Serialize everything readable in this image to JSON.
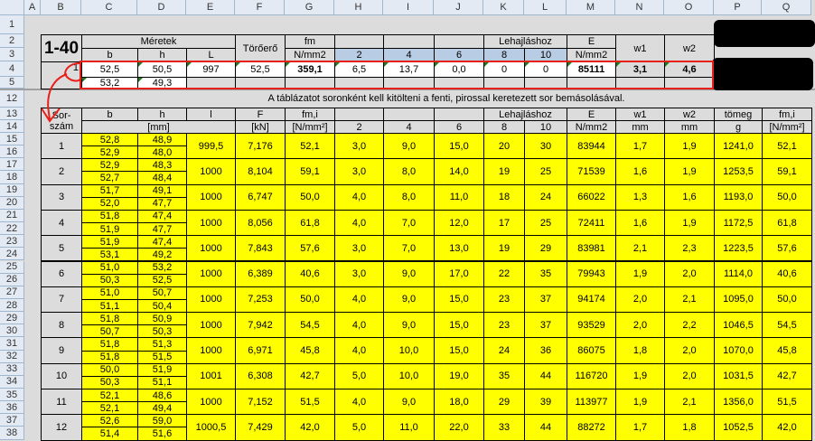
{
  "columns": [
    "A",
    "B",
    "C",
    "D",
    "E",
    "F",
    "G",
    "H",
    "I",
    "J",
    "K",
    "L",
    "M",
    "N",
    "O",
    "P",
    "Q"
  ],
  "row_numbers": [
    "1",
    "2",
    "3",
    "4",
    "5",
    "12",
    "13",
    "14",
    "15",
    "16",
    "17",
    "18",
    "19",
    "20",
    "21",
    "22",
    "23",
    "24",
    "25",
    "26",
    "27",
    "28",
    "29",
    "30",
    "31",
    "32",
    "33",
    "34",
    "35",
    "36",
    "37",
    "38"
  ],
  "summary_table": {
    "title": "1-40",
    "meretek": "Méretek",
    "b": "b",
    "h": "h",
    "L": "L",
    "toroero": "Törőerő",
    "fm": "fm",
    "fm_unit": "N/mm2",
    "lehajlas": "Lehajláshoz",
    "deflection_cols": [
      "2",
      "4",
      "6",
      "8",
      "10"
    ],
    "E": "E",
    "E_unit": "N/mm2",
    "w1": "w1",
    "w2": "w2"
  },
  "input_row": {
    "index": "1",
    "b1": "52,5",
    "h1": "50,5",
    "L": "997",
    "F": "52,5",
    "fm": "359,1",
    "d": [
      "6,5",
      "13,7",
      "0,0",
      "0",
      "0"
    ],
    "E": "85111",
    "w1": "3,1",
    "w2": "4,6",
    "b2": "53,2",
    "h2": "49,3"
  },
  "instruction": "A táblázatot soronként kell kitölteni a fenti, pirossal keretezett sor bemásolásával.",
  "data_table": {
    "headers_top": {
      "sorszam": "Sor-\nszám",
      "b": "b",
      "h": "h",
      "l": "l",
      "F": "F",
      "fmi": "fm,i",
      "lehajlas": "Lehajláshoz",
      "E": "E",
      "w1": "w1",
      "w2": "w2",
      "tomeg": "tömeg",
      "fmi2": "fm,i"
    },
    "headers_unit": {
      "mm": "[mm]",
      "kN": "[kN]",
      "Nmm2": "[N/mm²]",
      "d": [
        "2",
        "4",
        "6",
        "8",
        "10"
      ],
      "E": "N/mm2",
      "w1": "mm",
      "w2": "mm",
      "tomeg": "g",
      "fmi2": "[N/mm²]"
    }
  },
  "records": [
    {
      "n": "1",
      "b": [
        "52,8",
        "52,9"
      ],
      "h": [
        "48,9",
        "48,0"
      ],
      "l": "999,5",
      "F": "7,176",
      "fm": "52,1",
      "d": [
        "3,0",
        "9,0",
        "15,0",
        "20",
        "30"
      ],
      "E": "83944",
      "w1": "1,7",
      "w2": "1,9",
      "tomeg": "1241,0",
      "fmi": "52,1"
    },
    {
      "n": "2",
      "b": [
        "52,9",
        "52,7"
      ],
      "h": [
        "48,3",
        "48,4"
      ],
      "l": "1000",
      "F": "8,104",
      "fm": "59,1",
      "d": [
        "3,0",
        "8,0",
        "14,0",
        "19",
        "25"
      ],
      "E": "71539",
      "w1": "1,6",
      "w2": "1,9",
      "tomeg": "1253,5",
      "fmi": "59,1"
    },
    {
      "n": "3",
      "b": [
        "51,7",
        "52,0"
      ],
      "h": [
        "49,1",
        "47,7"
      ],
      "l": "1000",
      "F": "6,747",
      "fm": "50,0",
      "d": [
        "4,0",
        "8,0",
        "11,0",
        "18",
        "24"
      ],
      "E": "66022",
      "w1": "1,3",
      "w2": "1,6",
      "tomeg": "1193,0",
      "fmi": "50,0"
    },
    {
      "n": "4",
      "b": [
        "51,8",
        "51,9"
      ],
      "h": [
        "47,4",
        "47,7"
      ],
      "l": "1000",
      "F": "8,056",
      "fm": "61,8",
      "d": [
        "4,0",
        "7,0",
        "12,0",
        "17",
        "25"
      ],
      "E": "72411",
      "w1": "1,6",
      "w2": "1,9",
      "tomeg": "1172,5",
      "fmi": "61,8"
    },
    {
      "n": "5",
      "b": [
        "51,9",
        "53,1"
      ],
      "h": [
        "47,4",
        "49,2"
      ],
      "l": "1000",
      "F": "7,843",
      "fm": "57,6",
      "d": [
        "3,0",
        "7,0",
        "13,0",
        "19",
        "29"
      ],
      "E": "83981",
      "w1": "2,1",
      "w2": "2,3",
      "tomeg": "1223,5",
      "fmi": "57,6"
    },
    {
      "n": "6",
      "b": [
        "51,0",
        "50,3"
      ],
      "h": [
        "53,2",
        "52,5"
      ],
      "l": "1000",
      "F": "6,389",
      "fm": "40,6",
      "d": [
        "3,0",
        "9,0",
        "17,0",
        "22",
        "35"
      ],
      "E": "79943",
      "w1": "1,9",
      "w2": "2,0",
      "tomeg": "1114,0",
      "fmi": "40,6"
    },
    {
      "n": "7",
      "b": [
        "51,0",
        "51,1"
      ],
      "h": [
        "50,7",
        "50,4"
      ],
      "l": "1000",
      "F": "7,253",
      "fm": "50,0",
      "d": [
        "4,0",
        "9,0",
        "15,0",
        "23",
        "37"
      ],
      "E": "94174",
      "w1": "2,0",
      "w2": "2,1",
      "tomeg": "1095,0",
      "fmi": "50,0"
    },
    {
      "n": "8",
      "b": [
        "51,8",
        "50,7"
      ],
      "h": [
        "50,9",
        "50,3"
      ],
      "l": "1000",
      "F": "7,942",
      "fm": "54,5",
      "d": [
        "4,0",
        "9,0",
        "15,0",
        "23",
        "37"
      ],
      "E": "93529",
      "w1": "2,0",
      "w2": "2,2",
      "tomeg": "1046,5",
      "fmi": "54,5"
    },
    {
      "n": "9",
      "b": [
        "51,8",
        "51,8"
      ],
      "h": [
        "51,3",
        "51,5"
      ],
      "l": "1000",
      "F": "6,971",
      "fm": "45,8",
      "d": [
        "4,0",
        "10,0",
        "15,0",
        "24",
        "36"
      ],
      "E": "86075",
      "w1": "1,8",
      "w2": "2,0",
      "tomeg": "1070,0",
      "fmi": "45,8"
    },
    {
      "n": "10",
      "b": [
        "50,0",
        "50,3"
      ],
      "h": [
        "51,9",
        "51,1"
      ],
      "l": "1001",
      "F": "6,308",
      "fm": "42,7",
      "d": [
        "5,0",
        "10,0",
        "19,0",
        "35",
        "44"
      ],
      "E": "116720",
      "w1": "1,9",
      "w2": "2,0",
      "tomeg": "1031,5",
      "fmi": "42,7"
    },
    {
      "n": "11",
      "b": [
        "52,1",
        "52,1"
      ],
      "h": [
        "48,6",
        "49,4"
      ],
      "l": "1000",
      "F": "7,152",
      "fm": "51,5",
      "d": [
        "4,0",
        "9,0",
        "18,0",
        "29",
        "39"
      ],
      "E": "113977",
      "w1": "1,9",
      "w2": "2,1",
      "tomeg": "1356,0",
      "fmi": "51,5"
    },
    {
      "n": "12",
      "b": [
        "52,6",
        "51,4"
      ],
      "h": [
        "59,0",
        "51,6"
      ],
      "l": "1000,5",
      "F": "7,429",
      "fm": "42,0",
      "d": [
        "5,0",
        "11,0",
        "22,0",
        "33",
        "44"
      ],
      "E": "88272",
      "w1": "1,7",
      "w2": "1,8",
      "tomeg": "1052,5",
      "fmi": "42,0"
    }
  ],
  "colors": {
    "input_fill": "#ffff00",
    "highlight_header": "#b8cce4",
    "annotation": "#e8201a",
    "redaction": "#000000"
  }
}
